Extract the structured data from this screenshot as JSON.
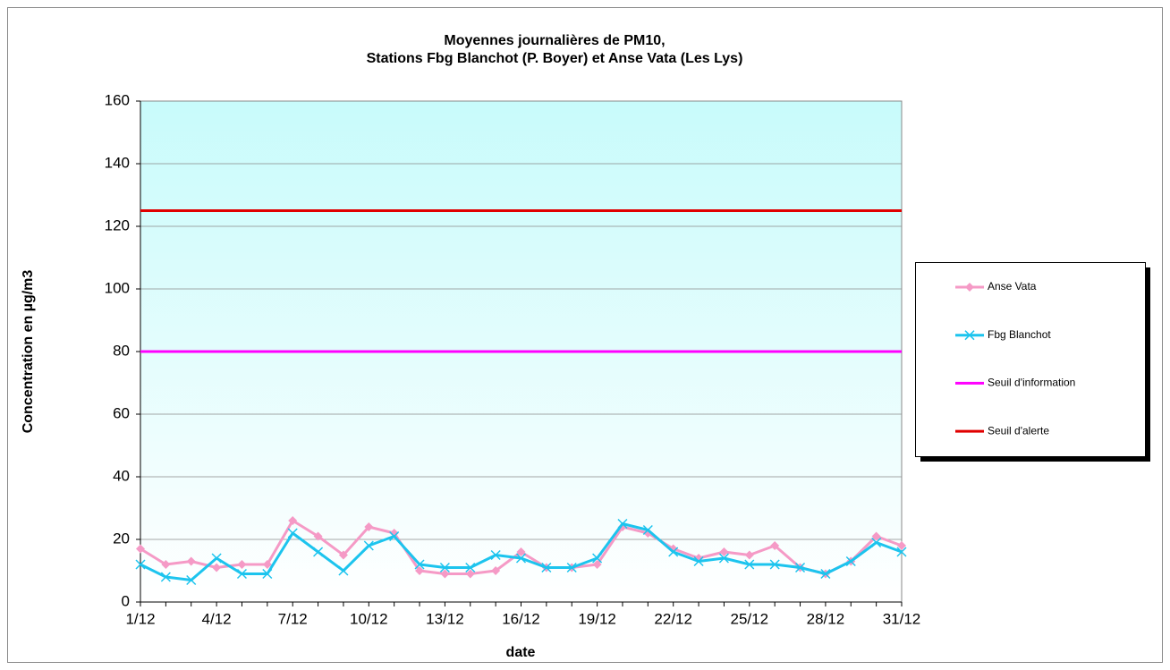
{
  "chart_data": {
    "type": "line",
    "title": [
      "Moyennes journalières de PM10,",
      "Stations Fbg Blanchot (P. Boyer) et Anse Vata (Les Lys)"
    ],
    "x_label": "date",
    "y_label": "Concentration en µg/m3",
    "categories": [
      "1/12",
      null,
      null,
      "4/12",
      null,
      null,
      "7/12",
      null,
      null,
      "10/12",
      null,
      null,
      "13/12",
      null,
      null,
      "16/12",
      null,
      null,
      "19/12",
      null,
      null,
      "22/12",
      null,
      null,
      "25/12",
      null,
      null,
      "28/12",
      null,
      null,
      "31/12"
    ],
    "series": [
      {
        "name": "Anse Vata",
        "color": "#f59ac6",
        "marker": "diamond",
        "values": [
          17,
          12,
          13,
          11,
          12,
          12,
          26,
          21,
          15,
          24,
          22,
          10,
          9,
          9,
          10,
          16,
          11,
          11,
          12,
          24,
          22,
          17,
          14,
          16,
          15,
          18,
          11,
          9,
          13,
          21,
          18
        ]
      },
      {
        "name": "Fbg Blanchot",
        "color": "#1cc4ee",
        "marker": "cross",
        "values": [
          12,
          8,
          7,
          14,
          9,
          9,
          22,
          16,
          10,
          18,
          21,
          12,
          11,
          11,
          15,
          14,
          11,
          11,
          14,
          25,
          23,
          16,
          13,
          14,
          12,
          12,
          11,
          9,
          13,
          19,
          16
        ]
      },
      {
        "name": "Seuil d'information",
        "color": "#ff00ff",
        "marker": "none",
        "values": [
          80,
          80,
          80,
          80,
          80,
          80,
          80,
          80,
          80,
          80,
          80,
          80,
          80,
          80,
          80,
          80,
          80,
          80,
          80,
          80,
          80,
          80,
          80,
          80,
          80,
          80,
          80,
          80,
          80,
          80,
          80
        ]
      },
      {
        "name": "Seuil d'alerte",
        "color": "#e00000",
        "marker": "none",
        "values": [
          125,
          125,
          125,
          125,
          125,
          125,
          125,
          125,
          125,
          125,
          125,
          125,
          125,
          125,
          125,
          125,
          125,
          125,
          125,
          125,
          125,
          125,
          125,
          125,
          125,
          125,
          125,
          125,
          125,
          125,
          125
        ]
      }
    ],
    "ylim": [
      0,
      160
    ],
    "yticks": [
      0,
      20,
      40,
      60,
      80,
      100,
      120,
      140,
      160
    ],
    "grid": true,
    "legend": "right"
  }
}
